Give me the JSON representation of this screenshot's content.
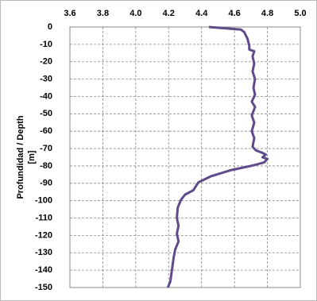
{
  "chart_data": {
    "type": "line",
    "ylabel": [
      "Profundidad / Depth",
      "[m]"
    ],
    "xlim": [
      3.6,
      5.0
    ],
    "xticks": [
      {
        "value": 3.6,
        "label": "3.6"
      },
      {
        "value": 3.8,
        "label": "3.8"
      },
      {
        "value": 4.0,
        "label": "4.0"
      },
      {
        "value": 4.2,
        "label": "4.2"
      },
      {
        "value": 4.4,
        "label": "4.4"
      },
      {
        "value": 4.6,
        "label": "4.6"
      },
      {
        "value": 4.8,
        "label": "4.8"
      },
      {
        "value": 5.0,
        "label": "5.0"
      }
    ],
    "ylim": [
      -150,
      0
    ],
    "yticks": [
      0,
      -10,
      -20,
      -30,
      -40,
      -50,
      -60,
      -70,
      -80,
      -90,
      -100,
      -110,
      -120,
      -130,
      -140,
      -150
    ],
    "grid": true,
    "series": [
      {
        "color": "#5f4b8b",
        "values": [
          4.445,
          4.64,
          4.66,
          4.68,
          4.69,
          4.69,
          4.72,
          4.71,
          4.72,
          4.71,
          4.725,
          4.715,
          4.725,
          4.705,
          4.725,
          4.705,
          4.72,
          4.705,
          4.72,
          4.71,
          4.73,
          4.77,
          4.79,
          4.77,
          4.8,
          4.78,
          4.7,
          4.575,
          4.455,
          4.38,
          4.35,
          4.3,
          4.275,
          4.255,
          4.25,
          4.26,
          4.25,
          4.26,
          4.24,
          4.23,
          4.22,
          4.21,
          4.195
        ],
        "depth": [
          0,
          -1.5,
          -3,
          -7,
          -11,
          -13,
          -14,
          -17,
          -21,
          -25.5,
          -30,
          -35,
          -39,
          -43,
          -46,
          -51,
          -55,
          -60,
          -64,
          -69,
          -71,
          -72.5,
          -73.5,
          -75,
          -76,
          -78,
          -80,
          -82.5,
          -86,
          -89.5,
          -94,
          -96.5,
          -99.5,
          -104,
          -110,
          -114.5,
          -119,
          -123.5,
          -128,
          -133,
          -140,
          -146.5,
          -150
        ]
      }
    ]
  }
}
